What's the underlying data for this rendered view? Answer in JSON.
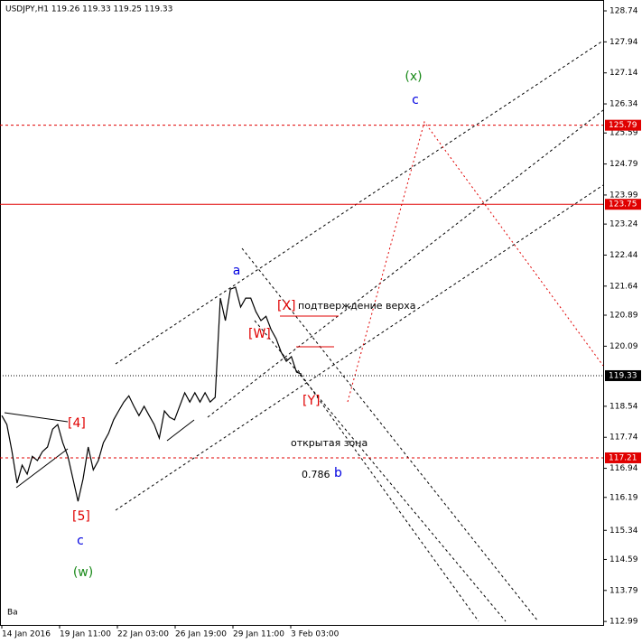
{
  "chart_data": {
    "type": "line",
    "title": "USDJPY,H1  119.26 119.33 119.25 119.33",
    "x_labels": [
      "14 Jan 2016",
      "19 Jan 11:00",
      "22 Jan 03:00",
      "26 Jan 19:00",
      "29 Jan 11:00",
      "3 Feb 03:00"
    ],
    "series": [
      {
        "name": "USDJPY",
        "color": "#000000",
        "values": [
          118.3,
          118.07,
          117.37,
          116.56,
          117.02,
          116.79,
          117.25,
          117.14,
          117.37,
          117.49,
          117.95,
          118.07,
          117.6,
          117.25,
          116.67,
          116.09,
          116.67,
          117.49,
          116.9,
          117.14,
          117.6,
          117.84,
          118.19,
          118.42,
          118.65,
          118.81,
          118.54,
          118.3,
          118.54,
          118.3,
          118.07,
          117.72,
          118.42,
          118.26,
          118.19,
          118.54,
          118.89,
          118.65,
          118.89,
          118.65,
          118.89,
          118.65,
          118.77,
          121.33,
          120.75,
          121.56,
          121.61,
          121.1,
          121.33,
          121.33,
          120.98,
          120.75,
          120.86,
          120.52,
          120.28,
          119.93,
          119.7,
          119.82,
          119.42,
          119.37
        ]
      }
    ],
    "ylim": [
      112.9,
      129.02
    ],
    "yticks": [
      128.74,
      127.94,
      127.14,
      126.34,
      125.59,
      124.79,
      123.99,
      123.24,
      122.44,
      121.64,
      120.89,
      120.09,
      118.54,
      117.74,
      116.94,
      116.19,
      115.34,
      114.59,
      113.79,
      112.99
    ],
    "levels": [
      {
        "value": 125.79,
        "color": "#e00000",
        "style": "dashed"
      },
      {
        "value": 123.75,
        "color": "#e00000",
        "style": "solid"
      },
      {
        "value": 119.33,
        "color": "#000000",
        "style": "dotted"
      },
      {
        "value": 117.21,
        "color": "#e00000",
        "style": "dashed"
      }
    ],
    "annotations": [
      "(x)",
      "c",
      "a",
      "[X]",
      "подтверждение верха",
      "[W]",
      "[Y]",
      "[4]",
      "[5]",
      "c",
      "(w)",
      "открытая зона",
      "0.786",
      "b",
      "Ba"
    ]
  }
}
